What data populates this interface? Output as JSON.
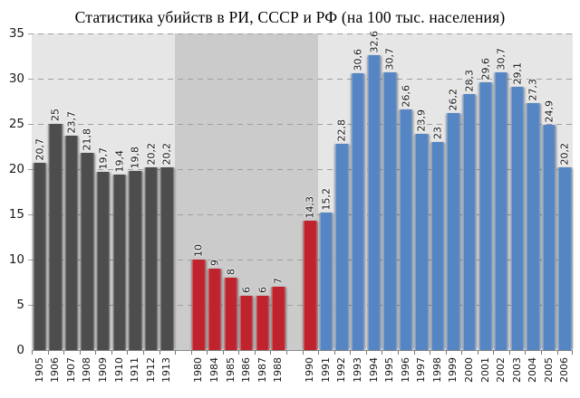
{
  "title": "Статистика убийств в РИ, СССР и РФ (на 100 тыс. населения)",
  "colors": {
    "bar_ri": "#4d4d4d",
    "bar_ussr": "#bf232e",
    "bar_rf": "#5585c2",
    "plot_bg": "#e6e6e6",
    "plot_bg_ussr_era": "#cbcbcb",
    "gridline": "#a0a0a0",
    "axis": "#8a8a8a"
  },
  "chart_data": {
    "type": "bar",
    "title": "Статистика убийств в РИ, СССР и РФ (на 100 тыс. населения)",
    "xlabel": "",
    "ylabel": "",
    "ylim": [
      0,
      35
    ],
    "yticks": [
      0,
      5,
      10,
      15,
      20,
      25,
      30,
      35
    ],
    "grid": "horizontal-dashed",
    "legend_position": "none",
    "value_labels": "rotated-90-above-bars",
    "x_tick_labels": "rotated-90",
    "slots": [
      {
        "year": "1905",
        "value": 20.7,
        "label": "20,7",
        "group": "ri"
      },
      {
        "year": "1906",
        "value": 25,
        "label": "25",
        "group": "ri"
      },
      {
        "year": "1907",
        "value": 23.7,
        "label": "23,7",
        "group": "ri"
      },
      {
        "year": "1908",
        "value": 21.8,
        "label": "21,8",
        "group": "ri"
      },
      {
        "year": "1909",
        "value": 19.7,
        "label": "19,7",
        "group": "ri"
      },
      {
        "year": "1910",
        "value": 19.4,
        "label": "19,4",
        "group": "ri"
      },
      {
        "year": "1911",
        "value": 19.8,
        "label": "19,8",
        "group": "ri"
      },
      {
        "year": "1912",
        "value": 20.2,
        "label": "20,2",
        "group": "ri"
      },
      {
        "year": "1913",
        "value": 20.2,
        "label": "20,2",
        "group": "ri"
      },
      {
        "spacer": true
      },
      {
        "year": "1980",
        "value": 10,
        "label": "10",
        "group": "ussr"
      },
      {
        "year": "1984",
        "value": 9,
        "label": "9",
        "group": "ussr"
      },
      {
        "year": "1985",
        "value": 8,
        "label": "8",
        "group": "ussr"
      },
      {
        "year": "1986",
        "value": 6,
        "label": "6",
        "group": "ussr"
      },
      {
        "year": "1987",
        "value": 6,
        "label": "6",
        "group": "ussr"
      },
      {
        "year": "1988",
        "value": 7,
        "label": "7",
        "group": "ussr"
      },
      {
        "spacer": true
      },
      {
        "year": "1990",
        "value": 14.3,
        "label": "14,3",
        "group": "ussr"
      },
      {
        "year": "1991",
        "value": 15.2,
        "label": "15,2",
        "group": "rf"
      },
      {
        "year": "1992",
        "value": 22.8,
        "label": "22,8",
        "group": "rf"
      },
      {
        "year": "1993",
        "value": 30.6,
        "label": "30,6",
        "group": "rf"
      },
      {
        "year": "1994",
        "value": 32.6,
        "label": "32,6",
        "group": "rf"
      },
      {
        "year": "1995",
        "value": 30.7,
        "label": "30,7",
        "group": "rf"
      },
      {
        "year": "1996",
        "value": 26.6,
        "label": "26,6",
        "group": "rf"
      },
      {
        "year": "1997",
        "value": 23.9,
        "label": "23,9",
        "group": "rf"
      },
      {
        "year": "1998",
        "value": 23,
        "label": "23",
        "group": "rf"
      },
      {
        "year": "1999",
        "value": 26.2,
        "label": "26,2",
        "group": "rf"
      },
      {
        "year": "2000",
        "value": 28.3,
        "label": "28,3",
        "group": "rf"
      },
      {
        "year": "2001",
        "value": 29.6,
        "label": "29,6",
        "group": "rf"
      },
      {
        "year": "2002",
        "value": 30.7,
        "label": "30,7",
        "group": "rf"
      },
      {
        "year": "2003",
        "value": 29.1,
        "label": "29,1",
        "group": "rf"
      },
      {
        "year": "2004",
        "value": 27.3,
        "label": "27,3",
        "group": "rf"
      },
      {
        "year": "2005",
        "value": 24.9,
        "label": "24,9",
        "group": "rf"
      },
      {
        "year": "2006",
        "value": 20.2,
        "label": "20,2",
        "group": "rf"
      }
    ],
    "background_regions": [
      {
        "name": "ri-era",
        "start_slot": 0,
        "end_slot": 9,
        "color": "#e6e6e6"
      },
      {
        "name": "ussr-era",
        "start_slot": 9,
        "end_slot": 18,
        "color": "#cbcbcb"
      },
      {
        "name": "rf-era",
        "start_slot": 18,
        "end_slot": 34,
        "color": "#e6e6e6"
      }
    ]
  }
}
